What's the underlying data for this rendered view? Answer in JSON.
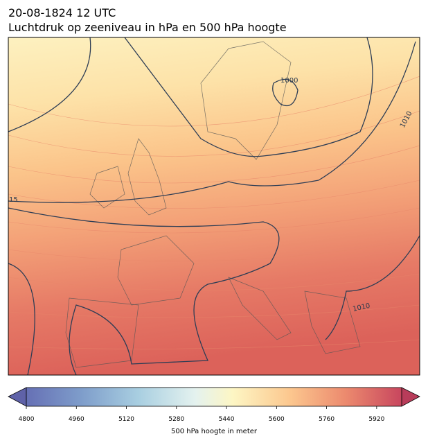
{
  "header": {
    "date": "20-08-1824 12 UTC",
    "title": "Luchtdruk op zeeniveau in hPa en 500 hPa hoogte"
  },
  "map": {
    "contour_labels": [
      "1000",
      "1010",
      "15",
      "1010"
    ]
  },
  "colorbar": {
    "label": "500 hPa hoogte in meter",
    "range": [
      4800,
      6000
    ],
    "ticks": [
      4800,
      4960,
      5120,
      5280,
      5440,
      5600,
      5760,
      5920
    ]
  }
}
